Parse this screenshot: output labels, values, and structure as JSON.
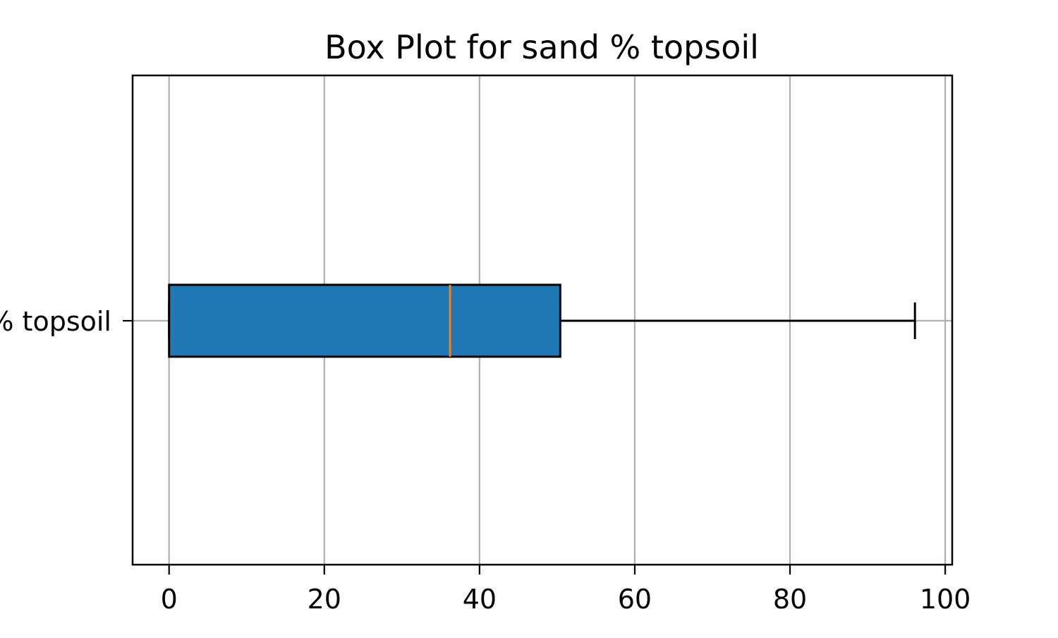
{
  "chart_data": {
    "type": "boxplot",
    "orientation": "horizontal",
    "title": "Box Plot for sand % topsoil",
    "xlabel": "",
    "ylabel": "",
    "xlim": [
      -4.7,
      100.9
    ],
    "x_ticks": [
      0,
      20,
      40,
      60,
      80,
      100
    ],
    "x_tick_labels": [
      "0",
      "20",
      "40",
      "60",
      "80",
      "100"
    ],
    "categories": [
      "sand % topsoil"
    ],
    "boxes": [
      {
        "label": "sand % topsoil",
        "whisker_low": 0,
        "q1": 0,
        "median": 36.2,
        "q3": 50.4,
        "whisker_high": 96.1
      }
    ],
    "grid": true,
    "colors": {
      "box_fill": "#1f77b4",
      "box_edge": "#000000",
      "median_line": "#ff7f0e",
      "whisker": "#000000",
      "grid": "#b0b0b0",
      "axes": "#000000"
    }
  }
}
